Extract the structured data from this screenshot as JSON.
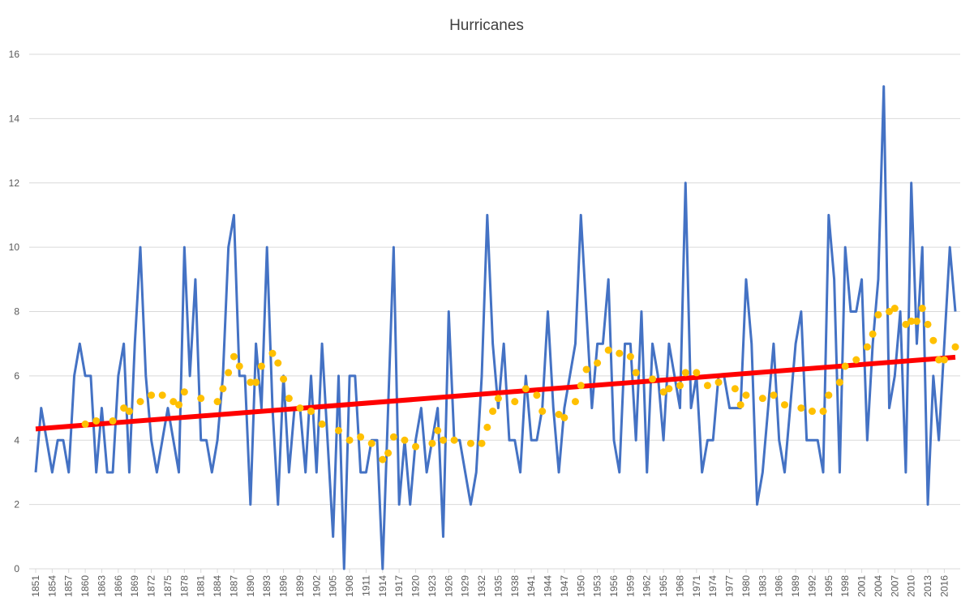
{
  "chart_data": {
    "type": "line",
    "title": "Hurricanes",
    "x": [
      1851,
      1852,
      1853,
      1854,
      1855,
      1856,
      1857,
      1858,
      1859,
      1860,
      1861,
      1862,
      1863,
      1864,
      1865,
      1866,
      1867,
      1868,
      1869,
      1870,
      1871,
      1872,
      1873,
      1874,
      1875,
      1876,
      1877,
      1878,
      1879,
      1880,
      1881,
      1882,
      1883,
      1884,
      1885,
      1886,
      1887,
      1888,
      1889,
      1890,
      1891,
      1892,
      1893,
      1894,
      1895,
      1896,
      1897,
      1898,
      1899,
      1900,
      1901,
      1902,
      1903,
      1904,
      1905,
      1906,
      1907,
      1908,
      1909,
      1910,
      1911,
      1912,
      1913,
      1914,
      1915,
      1916,
      1917,
      1918,
      1919,
      1920,
      1921,
      1922,
      1923,
      1924,
      1925,
      1926,
      1927,
      1928,
      1929,
      1930,
      1931,
      1932,
      1933,
      1934,
      1935,
      1936,
      1937,
      1938,
      1939,
      1940,
      1941,
      1942,
      1943,
      1944,
      1945,
      1946,
      1947,
      1948,
      1949,
      1950,
      1951,
      1952,
      1953,
      1954,
      1955,
      1956,
      1957,
      1958,
      1959,
      1960,
      1961,
      1962,
      1963,
      1964,
      1965,
      1966,
      1967,
      1968,
      1969,
      1970,
      1971,
      1972,
      1973,
      1974,
      1975,
      1976,
      1977,
      1978,
      1979,
      1980,
      1981,
      1982,
      1983,
      1984,
      1985,
      1986,
      1987,
      1988,
      1989,
      1990,
      1991,
      1992,
      1993,
      1994,
      1995,
      1996,
      1997,
      1998,
      1999,
      2000,
      2001,
      2002,
      2003,
      2004,
      2005,
      2006,
      2007,
      2008,
      2009,
      2010,
      2011,
      2012,
      2013,
      2014,
      2015,
      2016,
      2017,
      2018
    ],
    "series": [
      {
        "kind": "line",
        "color": "#4472c4",
        "values": [
          3,
          5,
          4,
          3,
          4,
          4,
          3,
          6,
          7,
          6,
          6,
          3,
          5,
          3,
          3,
          6,
          7,
          3,
          7,
          10,
          6,
          4,
          3,
          4,
          5,
          4,
          3,
          10,
          6,
          9,
          4,
          4,
          3,
          4,
          6,
          10,
          11,
          6,
          6,
          2,
          7,
          5,
          10,
          5,
          2,
          6,
          3,
          5,
          5,
          3,
          6,
          3,
          7,
          4,
          1,
          6,
          0,
          6,
          6,
          3,
          3,
          4,
          4,
          0,
          5,
          10,
          2,
          4,
          2,
          4,
          5,
          3,
          4,
          5,
          1,
          8,
          4,
          4,
          3,
          2,
          3,
          6,
          11,
          7,
          5,
          7,
          4,
          4,
          3,
          6,
          4,
          4,
          5,
          8,
          5,
          3,
          5,
          6,
          7,
          11,
          8,
          5,
          7,
          7,
          9,
          4,
          3,
          7,
          7,
          4,
          8,
          3,
          7,
          6,
          4,
          7,
          6,
          5,
          12,
          5,
          6,
          3,
          4,
          4,
          6,
          6,
          5,
          5,
          5,
          9,
          7,
          2,
          3,
          5,
          7,
          4,
          3,
          5,
          7,
          8,
          4,
          4,
          4,
          3,
          11,
          9,
          3,
          10,
          8,
          8,
          9,
          4,
          7,
          9,
          15,
          5,
          6,
          8,
          3,
          12,
          7,
          10,
          2,
          6,
          4,
          7,
          10,
          8
        ]
      },
      {
        "kind": "dots",
        "color": "#ffc000",
        "x": [
          1860,
          1862,
          1865,
          1867,
          1868,
          1870,
          1872,
          1874,
          1876,
          1877,
          1878,
          1881,
          1884,
          1885,
          1886,
          1887,
          1888,
          1890,
          1891,
          1892,
          1894,
          1895,
          1896,
          1897,
          1899,
          1901,
          1903,
          1906,
          1908,
          1910,
          1912,
          1914,
          1915,
          1916,
          1918,
          1920,
          1923,
          1924,
          1925,
          1927,
          1930,
          1932,
          1933,
          1934,
          1935,
          1938,
          1940,
          1942,
          1943,
          1946,
          1947,
          1949,
          1950,
          1951,
          1953,
          1955,
          1957,
          1959,
          1960,
          1963,
          1965,
          1966,
          1968,
          1969,
          1971,
          1973,
          1975,
          1978,
          1979,
          1980,
          1983,
          1985,
          1987,
          1990,
          1992,
          1994,
          1995,
          1997,
          1998,
          2000,
          2002,
          2003,
          2004,
          2006,
          2007,
          2009,
          2010,
          2011,
          2012,
          2013,
          2014,
          2015,
          2016,
          2018
        ],
        "values": [
          4.5,
          4.6,
          4.6,
          5.0,
          4.9,
          5.2,
          5.4,
          5.4,
          5.2,
          5.1,
          5.5,
          5.3,
          5.2,
          5.6,
          6.1,
          6.6,
          6.3,
          5.8,
          5.8,
          6.3,
          6.7,
          6.4,
          5.9,
          5.3,
          5.0,
          4.9,
          4.5,
          4.3,
          4.0,
          4.1,
          3.9,
          3.4,
          3.6,
          4.1,
          4.0,
          3.8,
          3.9,
          4.3,
          4.0,
          4.0,
          3.9,
          3.9,
          4.4,
          4.9,
          5.3,
          5.2,
          5.6,
          5.4,
          4.9,
          4.8,
          4.7,
          5.2,
          5.7,
          6.2,
          6.4,
          6.8,
          6.7,
          6.6,
          6.1,
          5.9,
          5.5,
          5.6,
          5.7,
          6.1,
          6.1,
          5.7,
          5.8,
          5.6,
          5.1,
          5.4,
          5.3,
          5.4,
          5.1,
          5.0,
          4.9,
          4.9,
          5.4,
          5.8,
          6.3,
          6.5,
          6.9,
          7.3,
          7.9,
          8.0,
          8.1,
          7.6,
          7.7,
          7.7,
          8.1,
          7.6,
          7.1,
          6.5,
          6.5,
          6.9
        ]
      },
      {
        "kind": "trend",
        "color": "#ff0000",
        "x": [
          1851,
          2018
        ],
        "values": [
          4.35,
          6.58
        ]
      }
    ],
    "xlim": [
      1851,
      2018
    ],
    "ylim": [
      0,
      16
    ],
    "xticks": [
      1851,
      1854,
      1857,
      1860,
      1863,
      1866,
      1869,
      1872,
      1875,
      1878,
      1881,
      1884,
      1887,
      1890,
      1893,
      1896,
      1899,
      1902,
      1905,
      1908,
      1911,
      1914,
      1917,
      1920,
      1923,
      1926,
      1929,
      1932,
      1935,
      1938,
      1941,
      1944,
      1947,
      1950,
      1953,
      1956,
      1959,
      1962,
      1965,
      1968,
      1971,
      1974,
      1977,
      1980,
      1983,
      1986,
      1989,
      1992,
      1995,
      1998,
      2001,
      2004,
      2007,
      2010,
      2013,
      2016
    ],
    "yticks": [
      0,
      2,
      4,
      6,
      8,
      10,
      12,
      14,
      16
    ],
    "grid": true
  }
}
